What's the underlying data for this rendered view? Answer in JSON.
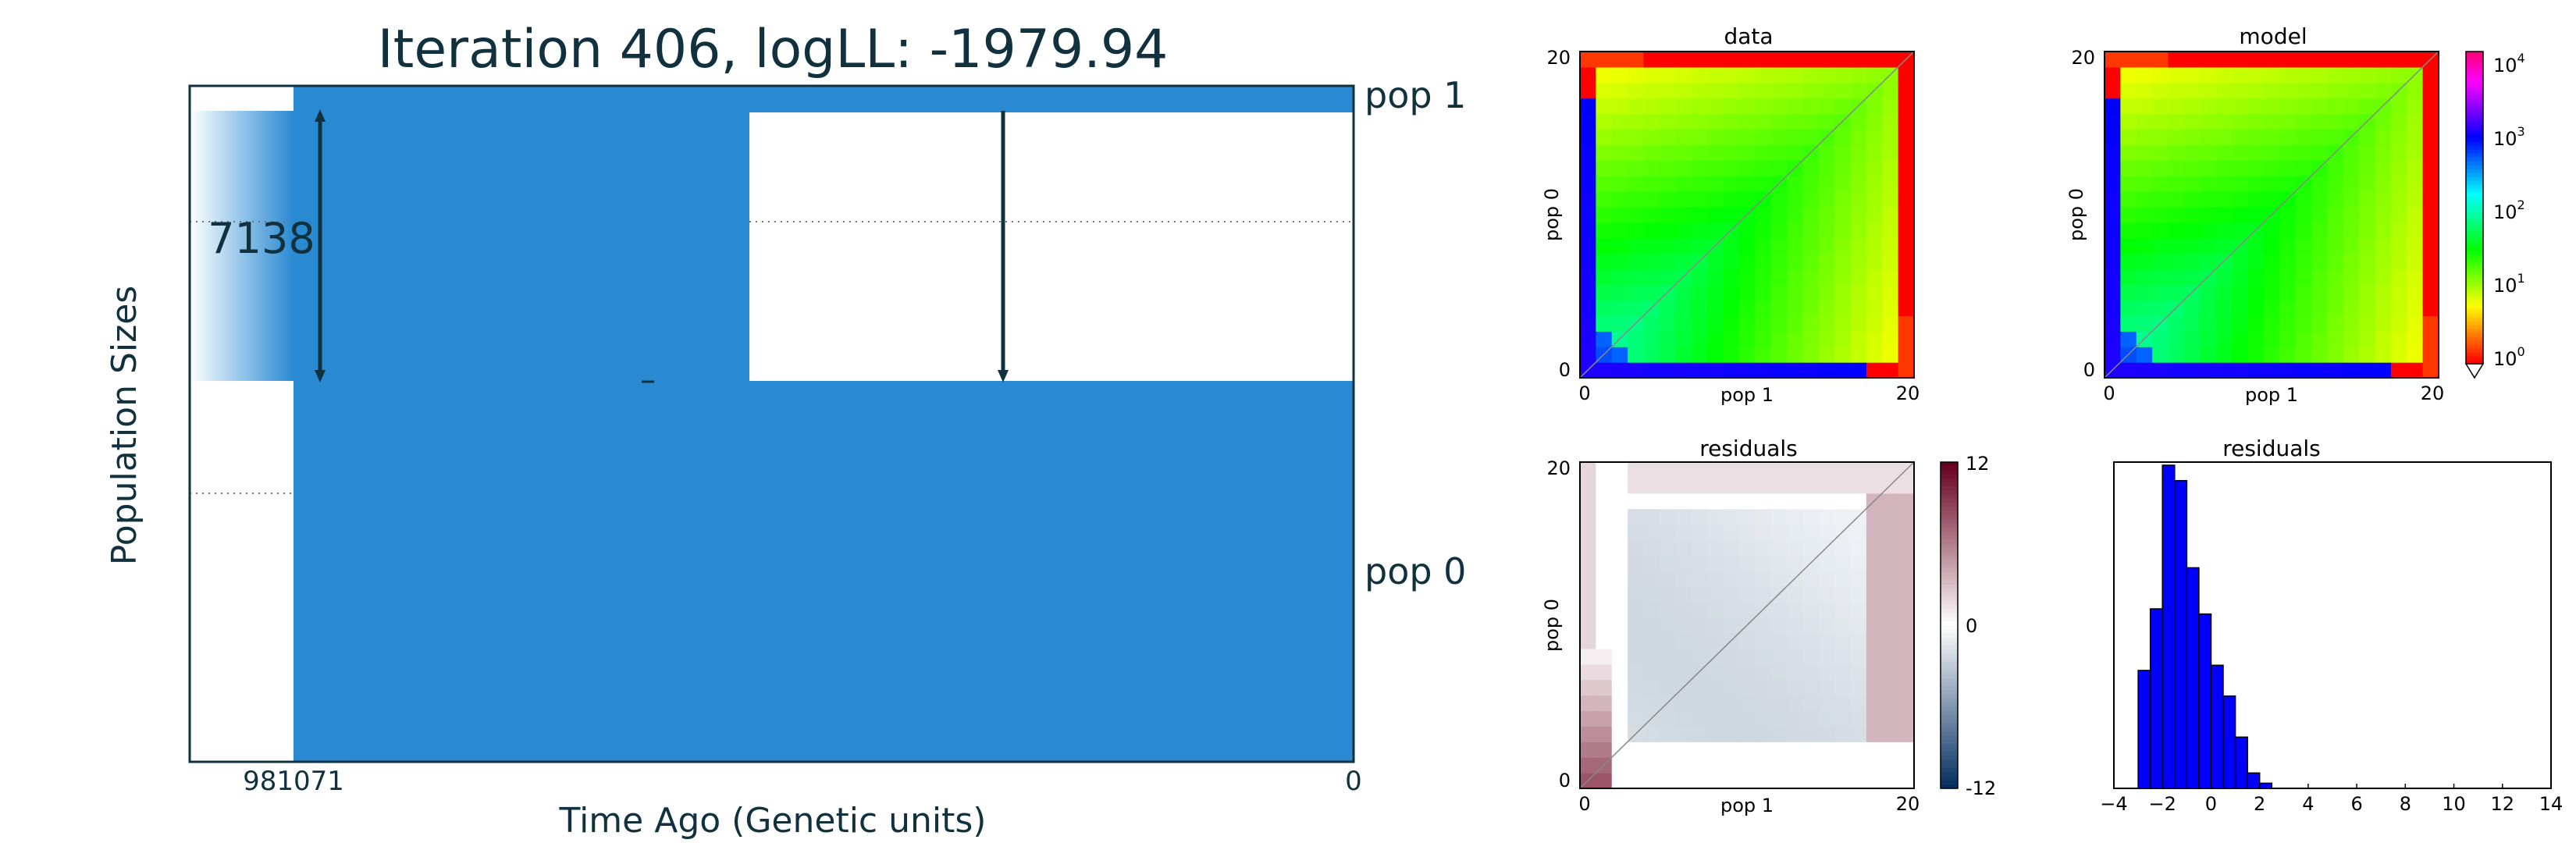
{
  "colors": {
    "pop_fill": "#298ad2",
    "text": "#12313f",
    "axis": "#12313f",
    "hist_bar": "#0000ff"
  },
  "demography": {
    "title": "Iteration 406, logLL:   -1979.94",
    "ylabel": "Population Sizes",
    "xlabel": "Time Ago (Genetic units)",
    "x_ticks": [
      "981071",
      "0"
    ],
    "pop_labels": [
      "pop 1",
      "pop 0"
    ],
    "size_label": "7138"
  },
  "chart_data": [
    {
      "type": "heatmap",
      "title": "data",
      "xlabel": "pop 1",
      "ylabel": "pop 0",
      "x_ticks": [
        "0",
        "20"
      ],
      "y_ticks": [
        "0",
        "20"
      ],
      "grid_size": 21
    },
    {
      "type": "heatmap",
      "title": "model",
      "xlabel": "pop 1",
      "ylabel": "pop 0",
      "x_ticks": [
        "0",
        "20"
      ],
      "y_ticks": [
        "0",
        "20"
      ],
      "grid_size": 21,
      "colorbar": {
        "scale": "log",
        "ticks": [
          {
            "base": "10",
            "exp": "4"
          },
          {
            "base": "10",
            "exp": "3"
          },
          {
            "base": "10",
            "exp": "2"
          },
          {
            "base": "10",
            "exp": "1"
          },
          {
            "base": "10",
            "exp": "0"
          }
        ]
      }
    },
    {
      "type": "heatmap",
      "title": "residuals",
      "xlabel": "pop 1",
      "ylabel": "pop 0",
      "x_ticks": [
        "0",
        "20"
      ],
      "y_ticks": [
        "0",
        "20"
      ],
      "grid_size": 21,
      "colorbar": {
        "range": [
          -12,
          12
        ],
        "ticks": [
          "12",
          "0",
          "-12"
        ]
      }
    },
    {
      "type": "bar",
      "title": "residuals",
      "x_ticks": [
        "−4",
        "−2",
        "0",
        "2",
        "4",
        "6",
        "8",
        "10",
        "12",
        "14"
      ],
      "xlim": [
        -4,
        14
      ],
      "bin_width": 0.5,
      "bins": [
        {
          "left": -3.0,
          "count": 23
        },
        {
          "left": -2.5,
          "count": 35
        },
        {
          "left": -2.0,
          "count": 63
        },
        {
          "left": -1.5,
          "count": 60
        },
        {
          "left": -1.0,
          "count": 43
        },
        {
          "left": -0.5,
          "count": 34
        },
        {
          "left": 0.0,
          "count": 24
        },
        {
          "left": 0.5,
          "count": 18
        },
        {
          "left": 1.0,
          "count": 10
        },
        {
          "left": 1.5,
          "count": 3
        },
        {
          "left": 2.0,
          "count": 1
        }
      ],
      "ymax": 63
    }
  ]
}
